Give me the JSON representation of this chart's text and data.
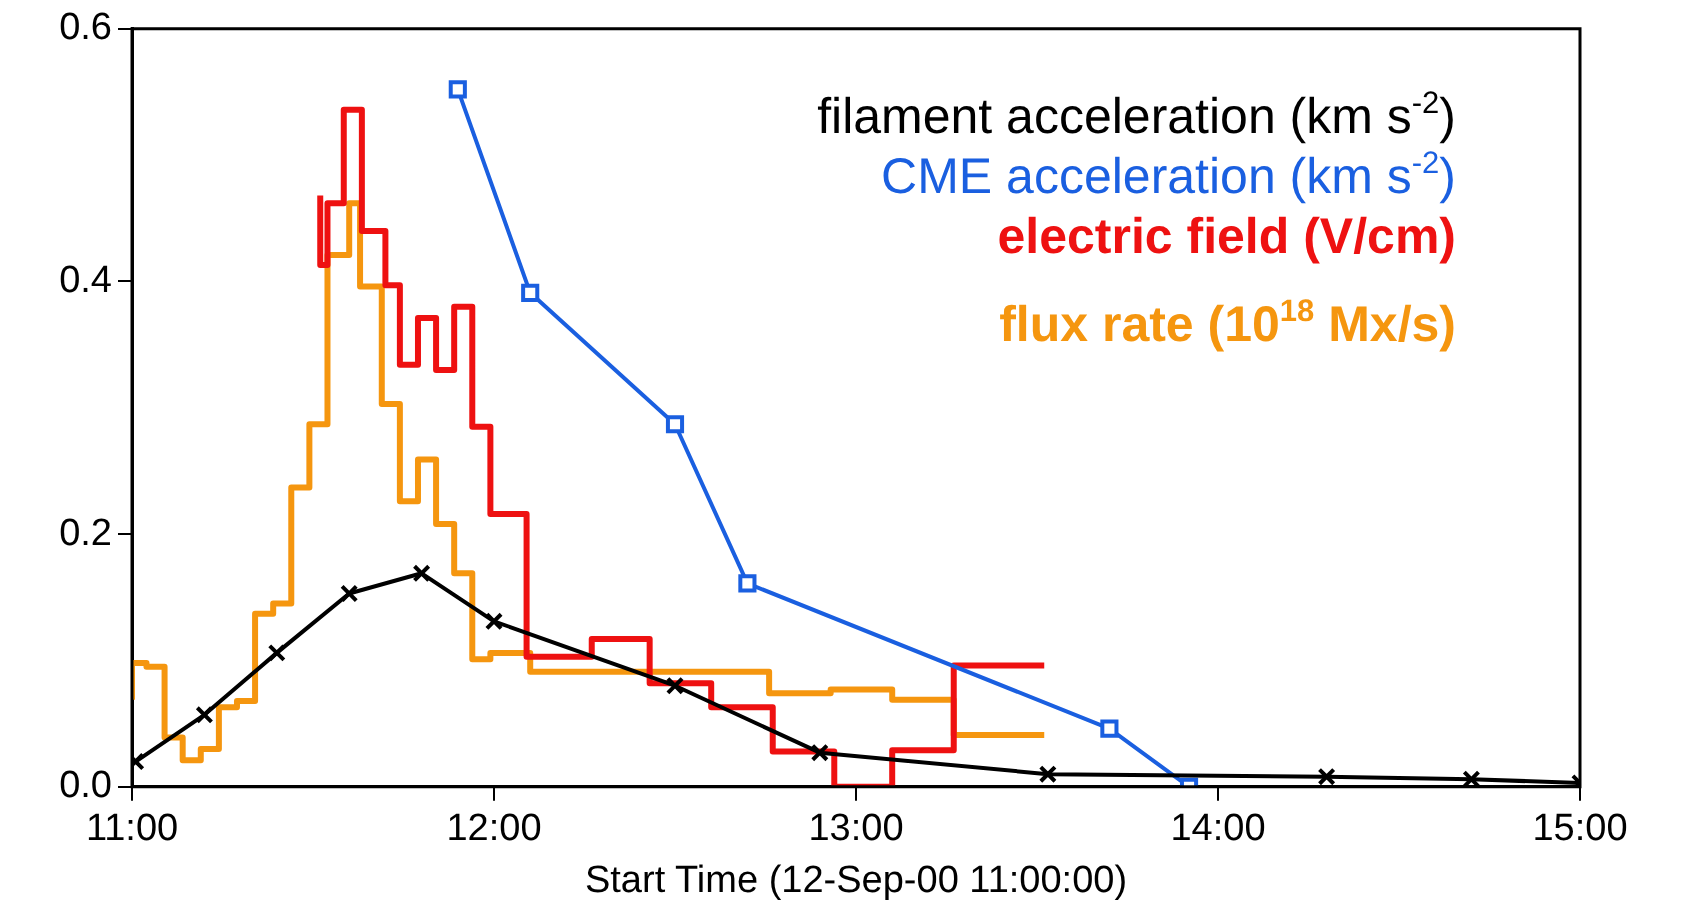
{
  "chart_data": {
    "type": "line",
    "xlabel": "Start Time (12-Sep-00 11:00:00)",
    "xlim": [
      11,
      15
    ],
    "xticks": [
      {
        "value": 11,
        "label": "11:00"
      },
      {
        "value": 12,
        "label": "12:00"
      },
      {
        "value": 13,
        "label": "13:00"
      },
      {
        "value": 14,
        "label": "14:00"
      },
      {
        "value": 15,
        "label": "15:00"
      }
    ],
    "ylim": [
      0,
      0.6
    ],
    "yticks": [
      {
        "value": 0,
        "label": "0.0"
      },
      {
        "value": 0.2,
        "label": "0.2"
      },
      {
        "value": 0.4,
        "label": "0.4"
      },
      {
        "value": 0.6,
        "label": "0.6"
      }
    ],
    "grid": false,
    "legend": "top right",
    "series": [
      {
        "name": "filament acceleration (km s$^{-2}$)",
        "type": "line",
        "color": "#000000",
        "marker": "cross",
        "x": [
          11.01,
          11.2,
          11.4,
          11.6,
          11.8,
          12.0,
          12.5,
          12.9,
          13.53,
          14.3,
          14.7,
          15.0
        ],
        "values": [
          0.02,
          0.057,
          0.106,
          0.153,
          0.169,
          0.131,
          0.08,
          0.027,
          0.01,
          0.008,
          0.006,
          0.003
        ]
      },
      {
        "name": "CME acceleration (km s$^{-2}$)",
        "type": "line",
        "color": "#1a5fe0",
        "marker": "square",
        "x": [
          11.9,
          12.1,
          12.5,
          12.7,
          13.7,
          13.92
        ],
        "values": [
          0.552,
          0.391,
          0.287,
          0.161,
          0.046,
          0
        ]
      },
      {
        "name": "electric field (V/cm)",
        "type": "step",
        "color": "#ee1111",
        "marker": "none",
        "x": [
          11.52,
          11.54,
          11.585,
          11.635,
          11.7,
          11.74,
          11.79,
          11.84,
          11.89,
          11.94,
          11.99,
          12.09,
          12.27,
          12.43,
          12.6,
          12.77,
          12.94,
          13.1,
          13.27,
          13.44,
          13.52
        ],
        "values": [
          0.468,
          0.413,
          0.462,
          0.536,
          0.44,
          0.397,
          0.334,
          0.371,
          0.33,
          0.38,
          0.285,
          0.216,
          0.103,
          0.117,
          0.082,
          0.063,
          0.028,
          0,
          0.029,
          0.096,
          0.096
        ]
      },
      {
        "name": "flux rate (10$^{18}$ Mx/s)",
        "type": "step",
        "color": "#f5960f",
        "marker": "none",
        "x": [
          11.0,
          11.04,
          11.09,
          11.14,
          11.19,
          11.24,
          11.29,
          11.34,
          11.39,
          11.44,
          11.49,
          11.54,
          11.6,
          11.63,
          11.69,
          11.74,
          11.79,
          11.84,
          11.89,
          11.94,
          11.99,
          12.1,
          12.76,
          12.93,
          13.1,
          13.27,
          13.44,
          13.52
        ],
        "values": [
          0.069,
          0.098,
          0.095,
          0.039,
          0.021,
          0.03,
          0.063,
          0.068,
          0.137,
          0.145,
          0.237,
          0.287,
          0.421,
          0.462,
          0.396,
          0.303,
          0.226,
          0.259,
          0.208,
          0.169,
          0.101,
          0.106,
          0.091,
          0.074,
          0.077,
          0.069,
          0.041,
          0.041
        ]
      }
    ]
  }
}
